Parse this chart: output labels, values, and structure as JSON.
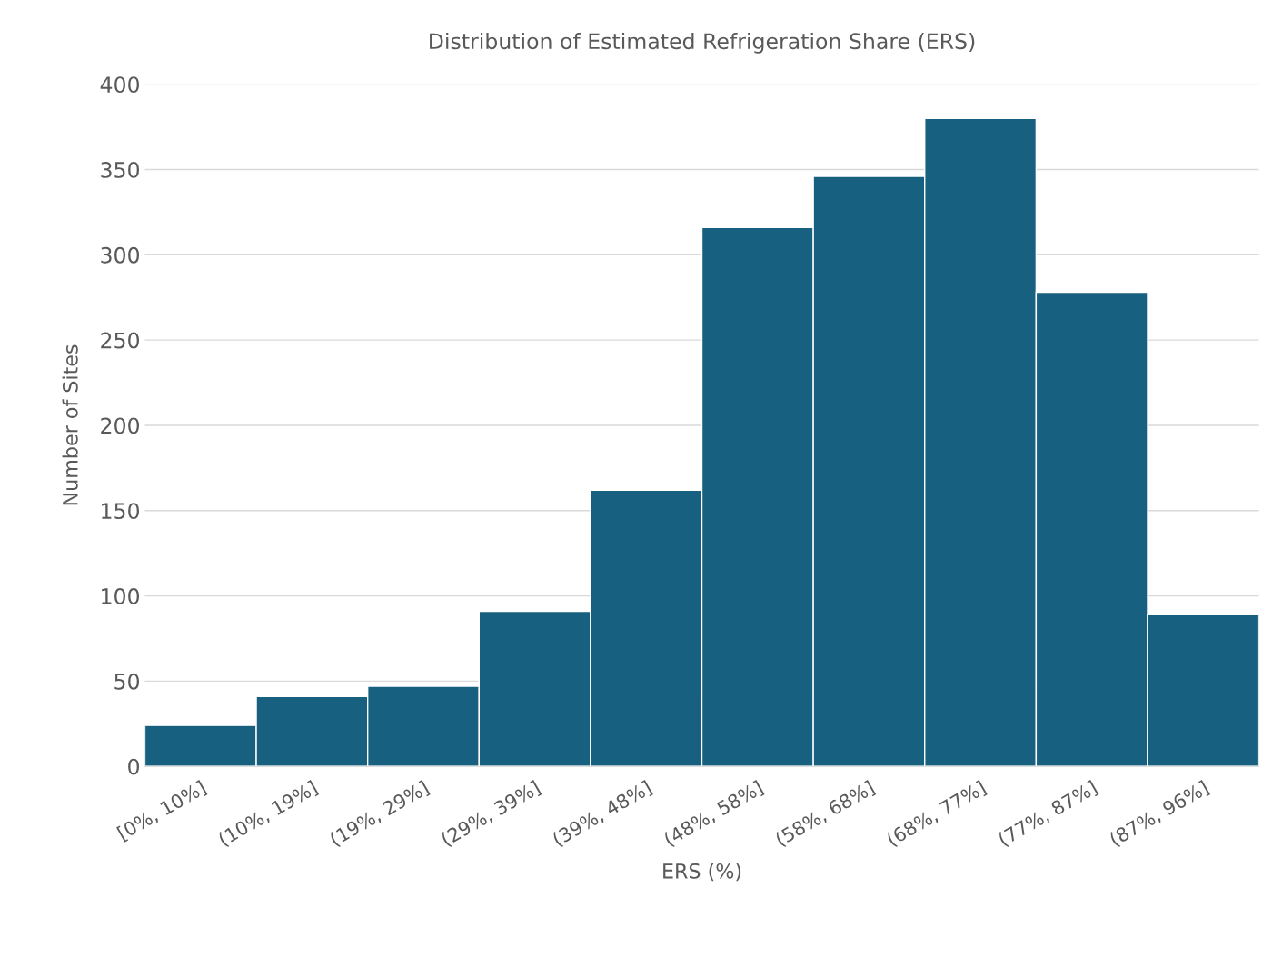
{
  "chart_data": {
    "type": "bar",
    "title": "Distribution of Estimated Refrigeration Share (ERS)",
    "xlabel": "ERS (%)",
    "ylabel": "Number of Sites",
    "categories": [
      "[0%, 10%]",
      "(10%, 19%]",
      "(19%, 29%]",
      "(29%, 39%]",
      "(39%, 48%]",
      "(48%, 58%]",
      "(58%, 68%]",
      "(68%, 77%]",
      "(77%, 87%]",
      "(87%, 96%]"
    ],
    "values": [
      24,
      41,
      47,
      91,
      162,
      316,
      346,
      380,
      278,
      89
    ],
    "color": "#17607f",
    "ylim": [
      0,
      400
    ],
    "yticks": [
      0,
      50,
      100,
      150,
      200,
      250,
      300,
      350,
      400
    ],
    "grid": "y",
    "legend": false
  }
}
